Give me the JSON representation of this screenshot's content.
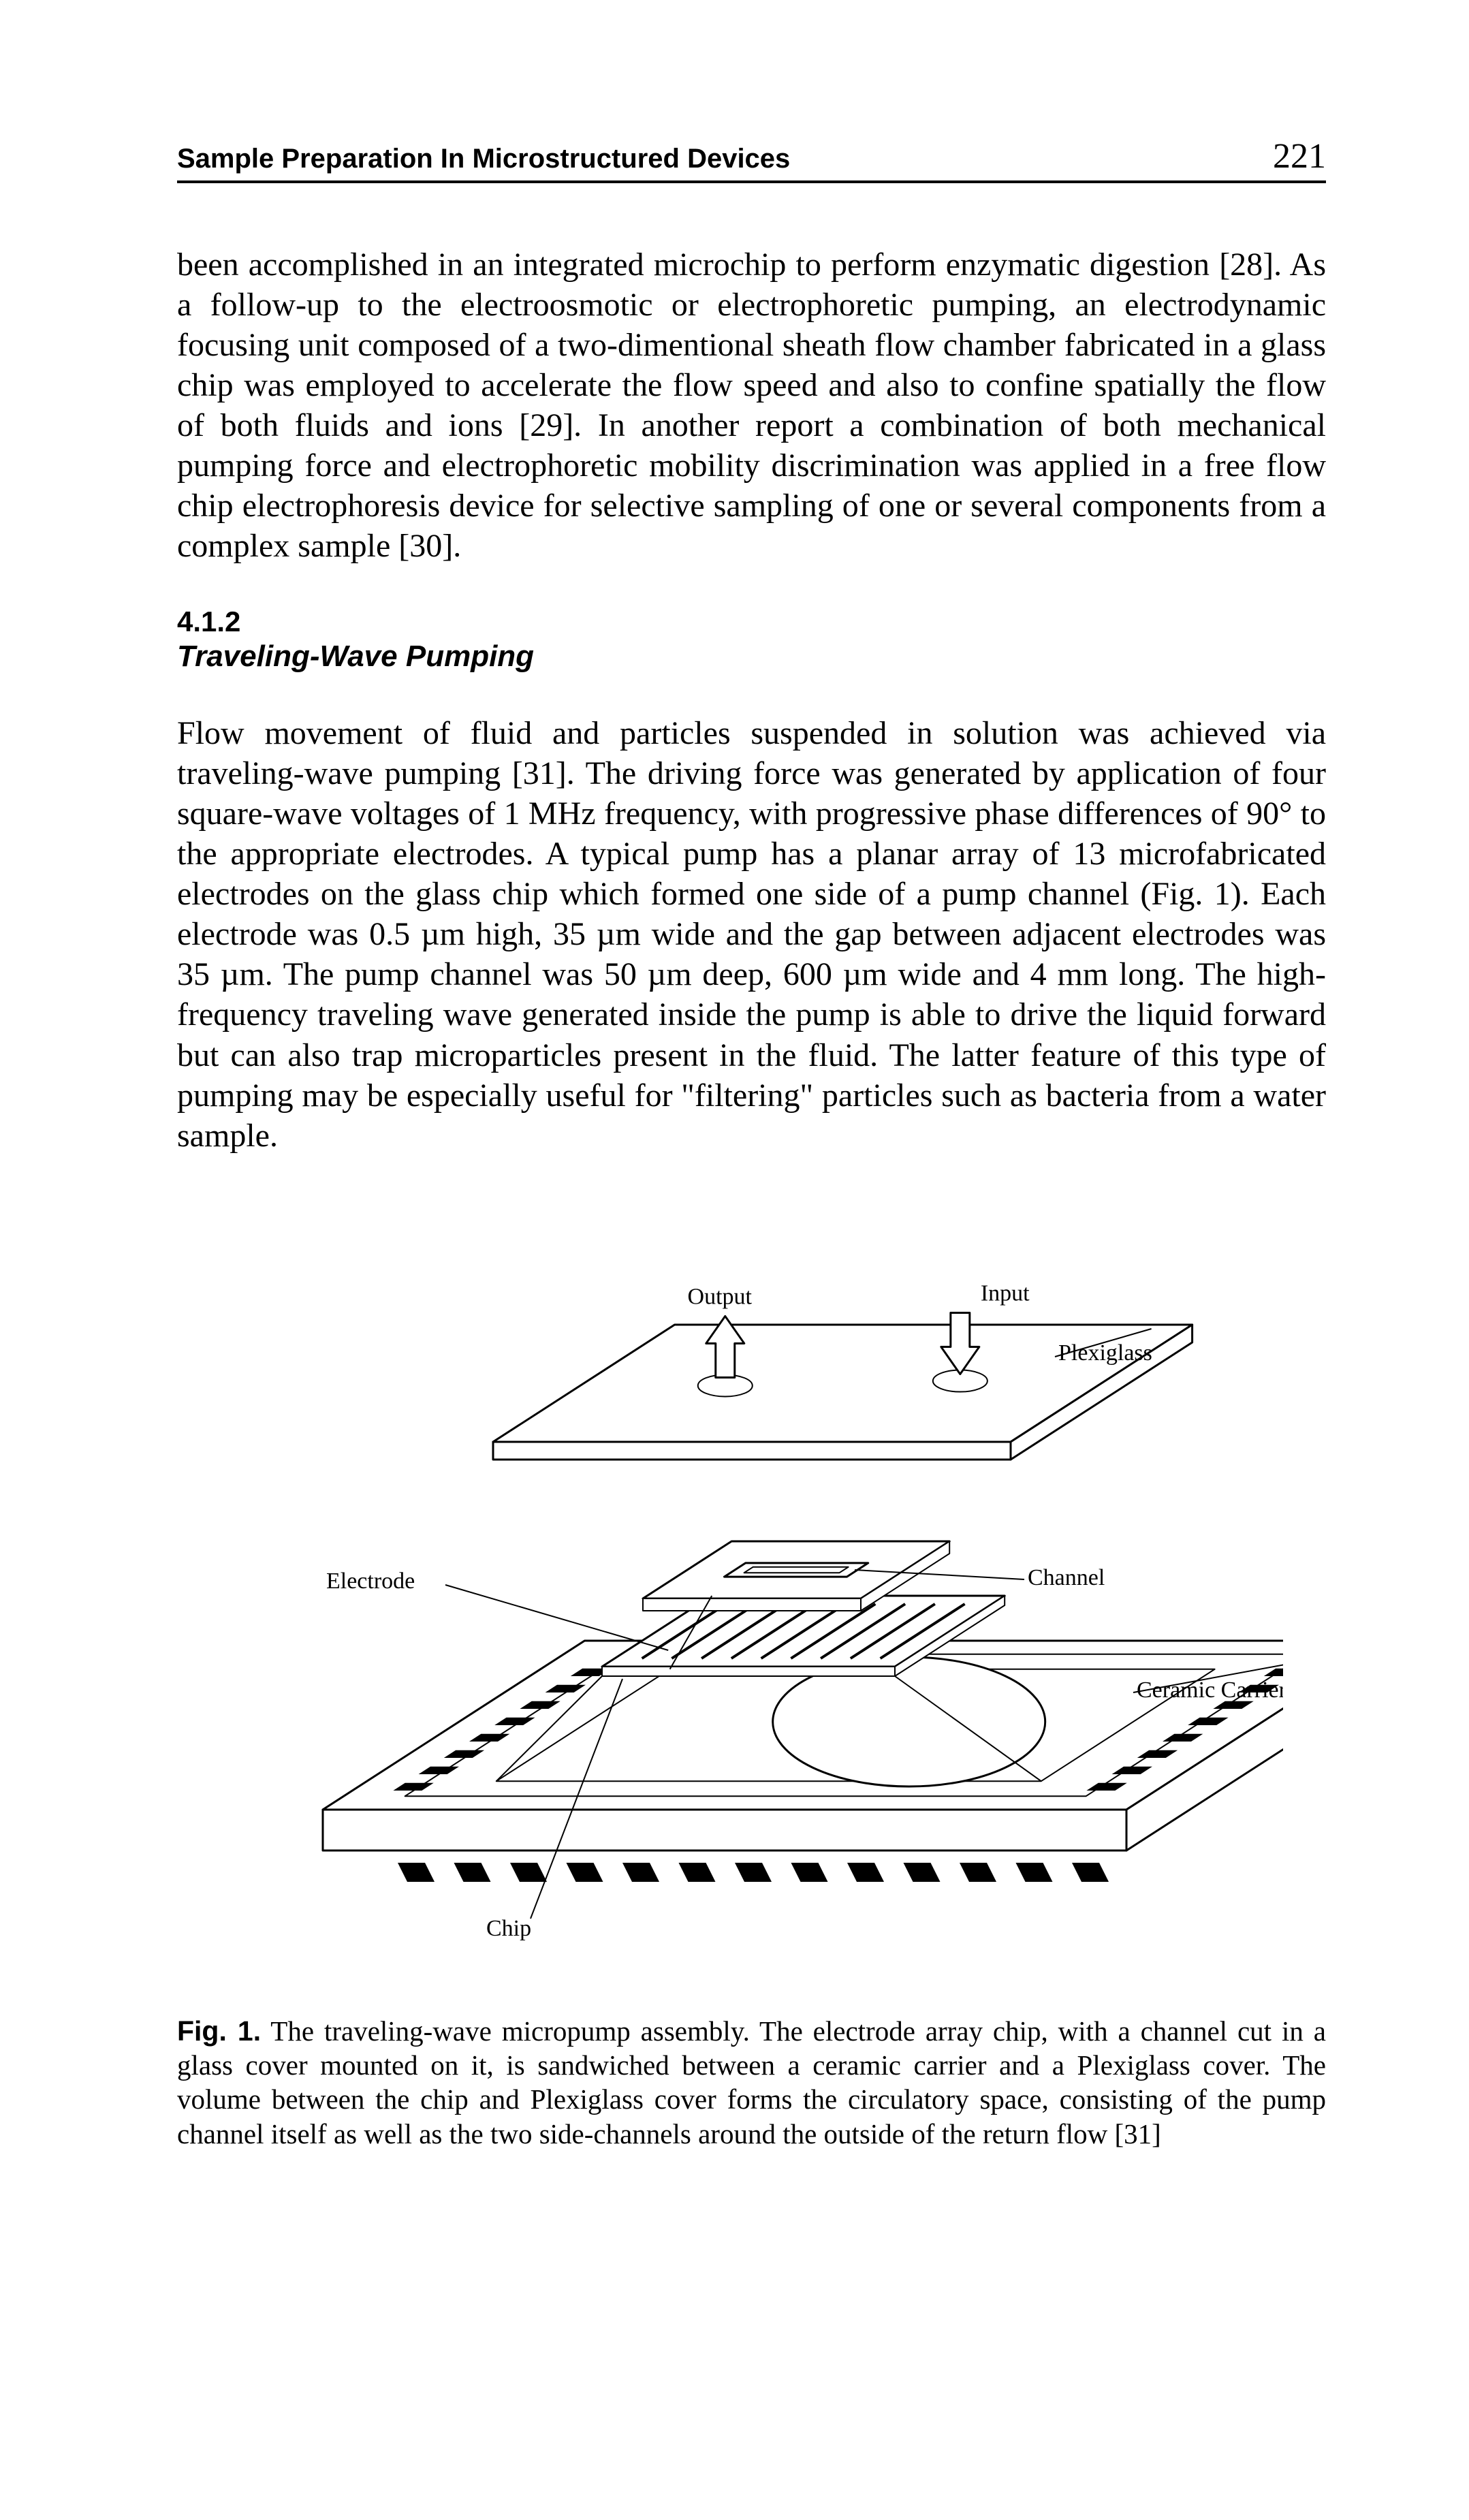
{
  "header": {
    "running_title": "Sample Preparation In Microstructured Devices",
    "page_number": "221"
  },
  "paragraphs": {
    "p1": "been accomplished in an integrated microchip to perform enzymatic digestion [28]. As a follow-up to the electroosmotic or electrophoretic pumping, an electrodynamic focusing unit composed of a two-dimentional sheath flow chamber fabricated in a glass chip was employed to accelerate the flow speed and also to confine spatially the flow of both fluids and ions [29]. In another report a combination of both mechanical pumping force and electrophoretic mobility discrimination was applied in a free flow chip electrophoresis device for selective sampling of one or several components from a complex sample [30].",
    "section_num": "4.1.2",
    "section_title": "Traveling-Wave Pumping",
    "p2": "Flow movement of fluid and particles suspended in solution was achieved via traveling-wave pumping [31]. The driving force was generated by application of four square-wave voltages of 1 MHz frequency, with progressive phase differences of 90° to the appropriate electrodes. A typical pump has a planar array of 13 microfabricated electrodes on the glass chip which formed one side of a pump channel (Fig. 1). Each electrode was 0.5 µm high, 35 µm wide and the gap between adjacent electrodes was 35 µm. The pump channel was 50 µm deep, 600 µm wide and 4 mm long. The high-frequency traveling wave generated inside the pump is able to drive the liquid forward but can also trap microparticles present in the fluid. The latter feature of this type of pumping may be especially useful for \"filtering\" particles such as bacteria from a water sample."
  },
  "figure": {
    "labels": {
      "output": "Output",
      "input": "Input",
      "plexiglass": "Plexiglass",
      "electrode": "Electrode",
      "channel": "Channel",
      "ceramic_carrier": "Ceramic Carrier",
      "chip": "Chip"
    },
    "style": {
      "stroke": "#000000",
      "fill_bg": "#ffffff",
      "fill_dark": "#000000",
      "stroke_width_main": 3,
      "stroke_width_thin": 2,
      "label_font_size": 34,
      "label_font_family": "Times New Roman, serif"
    }
  },
  "caption": {
    "label": "Fig. 1.",
    "text": "The traveling-wave micropump assembly. The electrode array chip, with a channel cut in a glass cover mounted on it, is sandwiched between a ceramic carrier and a Plexiglass cover. The volume between the chip and Plexiglass cover forms the circulatory space, consisting of the pump channel itself as well as the two side-channels around the outside of the return flow [31]"
  }
}
